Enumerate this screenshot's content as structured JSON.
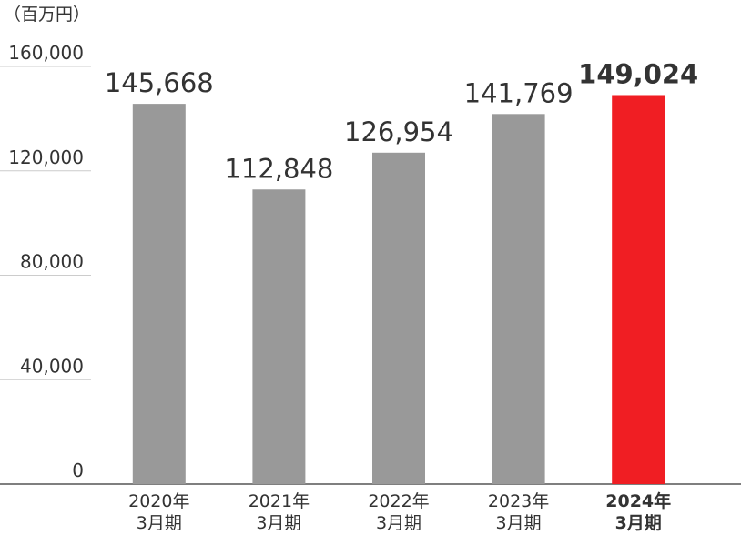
{
  "chart_data": {
    "type": "bar",
    "y_label": "（百万円）",
    "categories": [
      [
        "2020年",
        "3月期"
      ],
      [
        "2021年",
        "3月期"
      ],
      [
        "2022年",
        "3月期"
      ],
      [
        "2023年",
        "3月期"
      ],
      [
        "2024年",
        "3月期"
      ]
    ],
    "values": [
      145668,
      112848,
      126954,
      141769,
      149024
    ],
    "value_labels": [
      "145,668",
      "112,848",
      "126,954",
      "141,769",
      "149,024"
    ],
    "color": "#999999",
    "highlight_color": "#f01e23",
    "highlight_index": 4,
    "ylim": [
      0,
      160000
    ],
    "yticks": [
      0,
      {
        "value": 40000,
        "label": "40,000"
      },
      {
        "value": 80000,
        "label": "80,000"
      },
      {
        "value": 120000,
        "label": "120,000"
      },
      {
        "value": 160000,
        "label": "160,000"
      }
    ],
    "grid": true
  }
}
